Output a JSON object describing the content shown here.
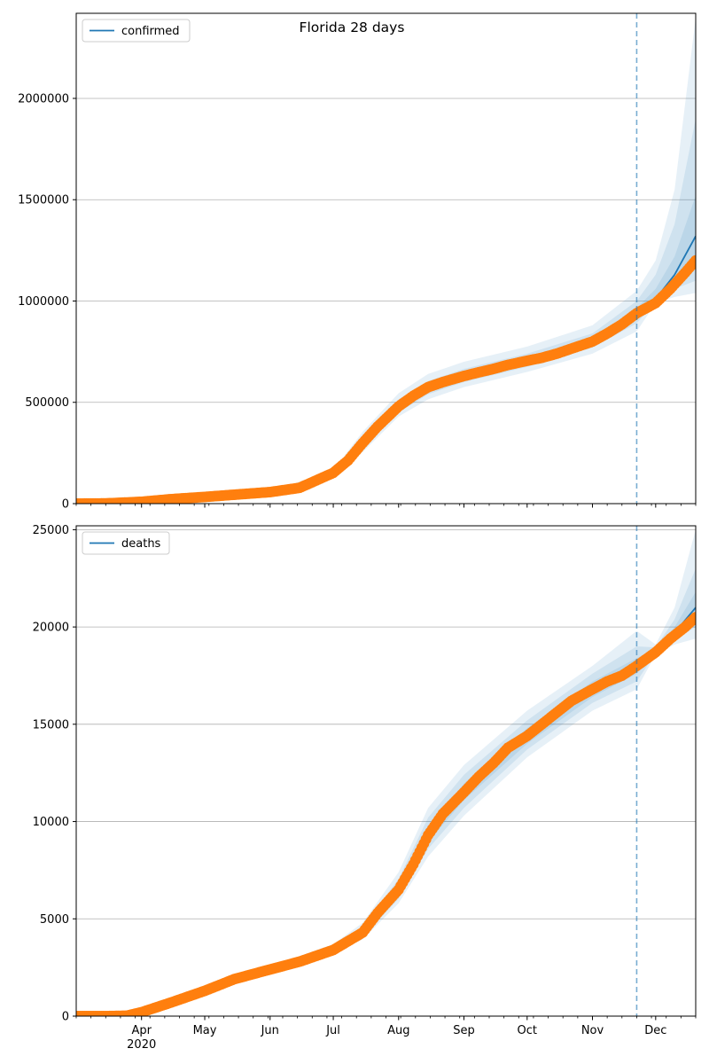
{
  "figure": {
    "title": "Florida 28 days"
  },
  "chart_data": [
    {
      "type": "line",
      "title": "Florida 28 days",
      "legend": [
        "confirmed"
      ],
      "legend_position": "top-left",
      "grid": "y",
      "x_axis": {
        "start": "2020-03-01",
        "end": "2020-12-20",
        "major_ticks": [
          "2020-04-01",
          "2020-05-01",
          "2020-06-01",
          "2020-07-01",
          "2020-08-01",
          "2020-09-01",
          "2020-10-01",
          "2020-11-01",
          "2020-12-01"
        ],
        "tick_labels": [
          "Apr",
          "May",
          "Jun",
          "Jul",
          "Aug",
          "Sep",
          "Oct",
          "Nov",
          "Dec"
        ],
        "year_label": "2020"
      },
      "ylim": [
        0,
        2420000
      ],
      "y_ticks": [
        0,
        500000,
        1000000,
        1500000,
        2000000
      ],
      "y_tick_labels": [
        "0",
        "500000",
        "1000000",
        "1500000",
        "2000000"
      ],
      "forecast_start": "2020-11-22",
      "colors": {
        "model": "#1f77b4",
        "observed": "#ff7f0e"
      },
      "series": [
        {
          "name": "confirmed",
          "kind": "model-median",
          "x": [
            "2020-03-01",
            "2020-04-01",
            "2020-05-01",
            "2020-06-01",
            "2020-06-15",
            "2020-07-01",
            "2020-07-15",
            "2020-08-01",
            "2020-08-15",
            "2020-09-01",
            "2020-09-15",
            "2020-10-01",
            "2020-10-15",
            "2020-11-01",
            "2020-11-15",
            "2020-11-22",
            "2020-12-01",
            "2020-12-10",
            "2020-12-20"
          ],
          "y": [
            0,
            10000,
            33000,
            57000,
            78000,
            152000,
            300000,
            480000,
            575000,
            630000,
            670000,
            705000,
            740000,
            800000,
            870000,
            940000,
            1010000,
            1130000,
            1320000
          ]
        },
        {
          "name": "observed",
          "kind": "observed-points",
          "x": [
            "2020-03-01",
            "2020-03-15",
            "2020-04-01",
            "2020-04-15",
            "2020-05-01",
            "2020-05-15",
            "2020-06-01",
            "2020-06-15",
            "2020-07-01",
            "2020-07-08",
            "2020-07-15",
            "2020-07-22",
            "2020-08-01",
            "2020-08-08",
            "2020-08-15",
            "2020-08-22",
            "2020-09-01",
            "2020-09-08",
            "2020-09-15",
            "2020-09-22",
            "2020-10-01",
            "2020-10-08",
            "2020-10-15",
            "2020-10-22",
            "2020-11-01",
            "2020-11-08",
            "2020-11-15",
            "2020-11-22",
            "2020-12-01",
            "2020-12-08",
            "2020-12-15",
            "2020-12-20"
          ],
          "y": [
            0,
            1000,
            9000,
            22000,
            33000,
            44000,
            57000,
            78000,
            152000,
            213000,
            300000,
            380000,
            480000,
            532000,
            575000,
            600000,
            630000,
            648000,
            665000,
            685000,
            705000,
            720000,
            740000,
            765000,
            800000,
            840000,
            885000,
            940000,
            990000,
            1060000,
            1140000,
            1200000
          ]
        }
      ],
      "bands": [
        {
          "x": [
            "2020-03-01",
            "2020-06-01",
            "2020-07-01",
            "2020-07-15",
            "2020-08-01",
            "2020-08-15",
            "2020-09-01",
            "2020-10-01",
            "2020-11-01",
            "2020-11-22",
            "2020-12-01",
            "2020-12-10",
            "2020-12-20"
          ],
          "lower": [
            0,
            55000,
            140000,
            255000,
            430000,
            515000,
            575000,
            650000,
            740000,
            850000,
            990000,
            1020000,
            1040000
          ],
          "upper": [
            0,
            60000,
            165000,
            355000,
            545000,
            640000,
            700000,
            775000,
            880000,
            1050000,
            1200000,
            1550000,
            2400000
          ]
        },
        {
          "x": [
            "2020-03-01",
            "2020-06-01",
            "2020-07-01",
            "2020-07-15",
            "2020-08-01",
            "2020-08-15",
            "2020-09-01",
            "2020-10-01",
            "2020-11-01",
            "2020-11-22",
            "2020-12-01",
            "2020-12-10",
            "2020-12-20"
          ],
          "lower": [
            0,
            56000,
            145000,
            275000,
            450000,
            540000,
            600000,
            675000,
            770000,
            890000,
            998000,
            1060000,
            1100000
          ],
          "upper": [
            0,
            59000,
            160000,
            330000,
            515000,
            605000,
            665000,
            740000,
            840000,
            1000000,
            1130000,
            1380000,
            1900000
          ]
        },
        {
          "x": [
            "2020-03-01",
            "2020-06-01",
            "2020-07-01",
            "2020-07-15",
            "2020-08-01",
            "2020-08-15",
            "2020-09-01",
            "2020-10-01",
            "2020-11-01",
            "2020-11-22",
            "2020-12-01",
            "2020-12-10",
            "2020-12-20"
          ],
          "lower": [
            0,
            56500,
            148000,
            288000,
            465000,
            557000,
            615000,
            690000,
            785000,
            915000,
            1003000,
            1090000,
            1180000
          ],
          "upper": [
            0,
            58000,
            156000,
            312000,
            495000,
            590000,
            645000,
            720000,
            815000,
            965000,
            1060000,
            1220000,
            1520000
          ]
        }
      ]
    },
    {
      "type": "line",
      "legend": [
        "deaths"
      ],
      "legend_position": "top-left",
      "grid": "y",
      "x_axis": {
        "start": "2020-03-01",
        "end": "2020-12-20",
        "major_ticks": [
          "2020-04-01",
          "2020-05-01",
          "2020-06-01",
          "2020-07-01",
          "2020-08-01",
          "2020-09-01",
          "2020-10-01",
          "2020-11-01",
          "2020-12-01"
        ],
        "tick_labels": [
          "Apr",
          "May",
          "Jun",
          "Jul",
          "Aug",
          "Sep",
          "Oct",
          "Nov",
          "Dec"
        ],
        "year_label": "2020"
      },
      "ylim": [
        0,
        25200
      ],
      "y_ticks": [
        0,
        5000,
        10000,
        15000,
        20000,
        25000
      ],
      "y_tick_labels": [
        "0",
        "5000",
        "10000",
        "15000",
        "20000",
        "25000"
      ],
      "forecast_start": "2020-11-22",
      "colors": {
        "model": "#1f77b4",
        "observed": "#ff7f0e"
      },
      "series": [
        {
          "name": "deaths",
          "kind": "model-median",
          "x": [
            "2020-03-01",
            "2020-03-20",
            "2020-04-01",
            "2020-04-15",
            "2020-05-01",
            "2020-05-15",
            "2020-06-01",
            "2020-06-15",
            "2020-07-01",
            "2020-07-15",
            "2020-08-01",
            "2020-08-15",
            "2020-09-01",
            "2020-09-15",
            "2020-10-01",
            "2020-10-15",
            "2020-11-01",
            "2020-11-15",
            "2020-11-22",
            "2020-12-01",
            "2020-12-10",
            "2020-12-20"
          ],
          "y": [
            0,
            10,
            200,
            700,
            1300,
            1900,
            2400,
            2800,
            3400,
            4300,
            6500,
            9300,
            11500,
            13000,
            14400,
            15600,
            16800,
            17500,
            18000,
            18700,
            19700,
            21000
          ]
        },
        {
          "name": "observed",
          "kind": "observed-points",
          "x": [
            "2020-03-01",
            "2020-03-15",
            "2020-03-25",
            "2020-04-01",
            "2020-04-15",
            "2020-05-01",
            "2020-05-15",
            "2020-06-01",
            "2020-06-15",
            "2020-07-01",
            "2020-07-15",
            "2020-07-22",
            "2020-08-01",
            "2020-08-08",
            "2020-08-15",
            "2020-08-22",
            "2020-09-01",
            "2020-09-08",
            "2020-09-15",
            "2020-09-22",
            "2020-10-01",
            "2020-10-08",
            "2020-10-15",
            "2020-10-22",
            "2020-11-01",
            "2020-11-08",
            "2020-11-15",
            "2020-11-22",
            "2020-12-01",
            "2020-12-08",
            "2020-12-15",
            "2020-12-20"
          ],
          "y": [
            0,
            0,
            20,
            200,
            700,
            1300,
            1900,
            2400,
            2800,
            3400,
            4300,
            5300,
            6500,
            7800,
            9300,
            10400,
            11500,
            12300,
            13000,
            13800,
            14400,
            15000,
            15600,
            16200,
            16800,
            17200,
            17500,
            18000,
            18700,
            19400,
            20000,
            20500
          ]
        }
      ],
      "bands": [
        {
          "x": [
            "2020-03-01",
            "2020-04-01",
            "2020-06-01",
            "2020-07-01",
            "2020-07-15",
            "2020-08-01",
            "2020-08-15",
            "2020-09-01",
            "2020-10-01",
            "2020-11-01",
            "2020-11-22",
            "2020-12-01",
            "2020-12-10",
            "2020-12-20"
          ],
          "lower": [
            0,
            150,
            2250,
            3200,
            3950,
            5800,
            8200,
            10300,
            13300,
            15700,
            16800,
            18600,
            19100,
            19400
          ],
          "upper": [
            0,
            250,
            2550,
            3700,
            4800,
            7400,
            10700,
            12900,
            15700,
            18000,
            19800,
            19100,
            21000,
            25000
          ]
        },
        {
          "x": [
            "2020-03-01",
            "2020-04-01",
            "2020-06-01",
            "2020-07-01",
            "2020-07-15",
            "2020-08-01",
            "2020-08-15",
            "2020-09-01",
            "2020-10-01",
            "2020-11-01",
            "2020-11-22",
            "2020-12-01",
            "2020-12-10",
            "2020-12-20"
          ],
          "lower": [
            0,
            170,
            2300,
            3280,
            4080,
            6030,
            8600,
            10700,
            13700,
            16100,
            17200,
            18650,
            19350,
            20000
          ],
          "upper": [
            0,
            230,
            2500,
            3580,
            4600,
            7050,
            10200,
            12400,
            15200,
            17600,
            19000,
            18950,
            20400,
            23000
          ]
        },
        {
          "x": [
            "2020-03-01",
            "2020-04-01",
            "2020-06-01",
            "2020-07-01",
            "2020-07-15",
            "2020-08-01",
            "2020-08-15",
            "2020-09-01",
            "2020-10-01",
            "2020-11-01",
            "2020-11-22",
            "2020-12-01",
            "2020-12-10",
            "2020-12-20"
          ],
          "lower": [
            0,
            185,
            2350,
            3330,
            4180,
            6250,
            8950,
            11100,
            14000,
            16400,
            17600,
            18680,
            19500,
            20400
          ],
          "upper": [
            0,
            215,
            2450,
            3480,
            4450,
            6800,
            9700,
            11950,
            14800,
            17200,
            18400,
            18850,
            20000,
            21800
          ]
        }
      ]
    }
  ]
}
